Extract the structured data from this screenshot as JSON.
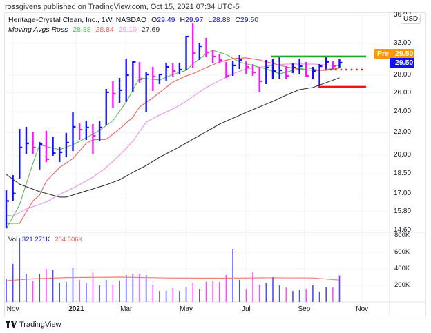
{
  "publisher_line": "rossgivens published on TradingView.com, Oct 15, 2021 07:34 UTC-5",
  "legend": {
    "symbol": "Heritage-Crystal Clean, Inc., 1W, NASDAQ",
    "o_label": "O",
    "o": "29.49",
    "h_label": "H",
    "h": "29.97",
    "l_label": "L",
    "l": "28.88",
    "c_label": "C",
    "c": "29.50",
    "ma_name": "Moving Avgs Ross",
    "ma1": "28.88",
    "ma2": "28.84",
    "ma3": "29.10",
    "ma4": "27.69"
  },
  "vol_legend": {
    "label": "Vol",
    "value": "321.271K",
    "ma": "264.506K"
  },
  "currency": "USD",
  "price_tags": {
    "pre_label": "Pre",
    "pre_value": "29.50",
    "last_value": "29.50"
  },
  "y_ticks": [
    "36.00",
    "32.00",
    "28.00",
    "26.00",
    "24.00",
    "22.00",
    "20.00",
    "18.50",
    "17.00",
    "15.80",
    "14.60"
  ],
  "y_tick_values": [
    36,
    32,
    28,
    26,
    24,
    22,
    20,
    18.5,
    17,
    15.8,
    14.6
  ],
  "vol_ticks": [
    "800K",
    "600K",
    "400K",
    "200K"
  ],
  "vol_tick_values": [
    800,
    600,
    400,
    200
  ],
  "x_ticks": [
    {
      "label": "Nov",
      "bar": 2,
      "bold": false
    },
    {
      "label": "2021",
      "bar": 11.5,
      "bold": true
    },
    {
      "label": "Mar",
      "bar": 19,
      "bold": false
    },
    {
      "label": "May",
      "bar": 28,
      "bold": false
    },
    {
      "label": "Jul",
      "bar": 37,
      "bold": false
    },
    {
      "label": "Sep",
      "bar": 45.7,
      "bold": false
    },
    {
      "label": "Nov",
      "bar": 54.4,
      "bold": false
    }
  ],
  "footer": {
    "brand": "TradingView"
  },
  "colors": {
    "up": "#1010ff",
    "down": "#ff10ff",
    "ma1": "#5cb85c",
    "ma2": "#f25c54",
    "ma3": "#f48cf4",
    "ma4": "#333333",
    "vol_ma": "#f25c54",
    "pre": "#ff9800",
    "last": "#1010ff",
    "resistance": "#22a822",
    "support": "#ff1010"
  },
  "chart_data": {
    "type": "ohlc-bar",
    "scale": "log",
    "bars": [
      [
        17.27,
        14.77,
        16.51,
        "up"
      ],
      [
        18.4,
        16.53,
        17.04,
        "up"
      ],
      [
        22.34,
        18.14,
        20.67,
        "up"
      ],
      [
        22.54,
        20.13,
        21.03,
        "up"
      ],
      [
        22.03,
        20.13,
        20.67,
        "down"
      ],
      [
        21.15,
        18.84,
        20.96,
        "up"
      ],
      [
        22.15,
        19.44,
        19.67,
        "down"
      ],
      [
        21.64,
        19.96,
        20.19,
        "up"
      ],
      [
        20.72,
        19.44,
        20.25,
        "up"
      ],
      [
        21.97,
        19.84,
        21.09,
        "up"
      ],
      [
        23.95,
        20.36,
        22.54,
        "up"
      ],
      [
        22.86,
        21.33,
        22.28,
        "down"
      ],
      [
        23.13,
        21.33,
        22.48,
        "up"
      ],
      [
        22.8,
        20.08,
        21.7,
        "down"
      ],
      [
        23.13,
        21.21,
        22.48,
        "up"
      ],
      [
        26.43,
        22.67,
        26.05,
        "up"
      ],
      [
        27.28,
        24.44,
        25.9,
        "down"
      ],
      [
        27.68,
        24.94,
        26.28,
        "up"
      ],
      [
        30.02,
        25.01,
        28.0,
        "up"
      ],
      [
        29.76,
        26.13,
        29.58,
        "up"
      ],
      [
        29.58,
        27.13,
        27.52,
        "down"
      ],
      [
        28.41,
        23.95,
        28.08,
        "up"
      ],
      [
        28.99,
        26.2,
        27.84,
        "down"
      ],
      [
        28.16,
        26.97,
        28.08,
        "up"
      ],
      [
        29.5,
        27.36,
        28.99,
        "up"
      ],
      [
        29.41,
        27.76,
        28.49,
        "down"
      ],
      [
        29.5,
        28.08,
        28.66,
        "up"
      ],
      [
        33.02,
        28.57,
        32.93,
        "up"
      ],
      [
        34.79,
        28.82,
        30.72,
        "down"
      ],
      [
        32.08,
        29.84,
        31.62,
        "up"
      ],
      [
        32.74,
        30.19,
        30.81,
        "down"
      ],
      [
        31.16,
        29.41,
        30.28,
        "down"
      ],
      [
        30.54,
        29.41,
        29.84,
        "down"
      ],
      [
        29.58,
        27.68,
        27.92,
        "down"
      ],
      [
        29.76,
        27.92,
        29.16,
        "up"
      ],
      [
        30.45,
        28.74,
        29.84,
        "up"
      ],
      [
        29.76,
        28.16,
        28.99,
        "down"
      ],
      [
        29.33,
        27.92,
        28.33,
        "down"
      ],
      [
        28.99,
        26.05,
        27.28,
        "down"
      ],
      [
        29.84,
        26.97,
        28.91,
        "up"
      ],
      [
        30.02,
        27.52,
        28.49,
        "up"
      ],
      [
        30.19,
        27.52,
        28.57,
        "up"
      ],
      [
        29.07,
        27.52,
        27.92,
        "down"
      ],
      [
        29.41,
        28.24,
        28.91,
        "up"
      ],
      [
        30.02,
        28.08,
        29.07,
        "up"
      ],
      [
        29.58,
        27.76,
        27.92,
        "down"
      ],
      [
        28.99,
        27.52,
        28.49,
        "up"
      ],
      [
        29.33,
        26.66,
        29.07,
        "up"
      ],
      [
        30.19,
        28.74,
        29.58,
        "up"
      ],
      [
        29.76,
        28.74,
        29.07,
        "down"
      ],
      [
        29.97,
        28.88,
        29.5,
        "up"
      ]
    ],
    "moving_averages": [
      {
        "name": "ma1",
        "points": [
          [
            1,
            14.69
          ],
          [
            3,
            16.25
          ],
          [
            5,
            19.33
          ],
          [
            6,
            20.9
          ],
          [
            9,
            20.48
          ],
          [
            11,
            20.9
          ],
          [
            13,
            21.52
          ],
          [
            15,
            22.21
          ],
          [
            17,
            23.13
          ],
          [
            19,
            25.01
          ],
          [
            21,
            27.68
          ],
          [
            24,
            27.44
          ],
          [
            26,
            28.08
          ],
          [
            28,
            28.57
          ],
          [
            29,
            29.33
          ],
          [
            31,
            30.63
          ],
          [
            32,
            31.07
          ],
          [
            34,
            30.54
          ],
          [
            36,
            29.58
          ],
          [
            38,
            29.16
          ],
          [
            40,
            28.74
          ],
          [
            42,
            28.16
          ],
          [
            44,
            28.57
          ],
          [
            46,
            28.91
          ],
          [
            48,
            28.57
          ],
          [
            51,
            28.88
          ]
        ]
      },
      {
        "name": "ma2",
        "points": [
          [
            1,
            15.03
          ],
          [
            3,
            15.03
          ],
          [
            5,
            16.51
          ],
          [
            6,
            16.92
          ],
          [
            7,
            17.93
          ],
          [
            9,
            19.0
          ],
          [
            11,
            19.73
          ],
          [
            13,
            21.03
          ],
          [
            14,
            21.34
          ],
          [
            16,
            21.39
          ],
          [
            18,
            22.34
          ],
          [
            20,
            23.47
          ],
          [
            21,
            24.51
          ],
          [
            23,
            25.45
          ],
          [
            26,
            27.2
          ],
          [
            28,
            27.92
          ],
          [
            29,
            28.16
          ],
          [
            31,
            28.91
          ],
          [
            33,
            29.58
          ],
          [
            35,
            30.02
          ],
          [
            37,
            30.11
          ],
          [
            39,
            29.84
          ],
          [
            41,
            29.41
          ],
          [
            43,
            28.99
          ],
          [
            45,
            28.74
          ],
          [
            47,
            28.57
          ],
          [
            49,
            28.57
          ],
          [
            51,
            28.84
          ]
        ]
      },
      {
        "name": "ma3",
        "points": [
          [
            1,
            15.56
          ],
          [
            2,
            15.5
          ],
          [
            4,
            15.97
          ],
          [
            7,
            16.44
          ],
          [
            9,
            16.97
          ],
          [
            11,
            17.42
          ],
          [
            14,
            18.24
          ],
          [
            16,
            19.0
          ],
          [
            18,
            20.01
          ],
          [
            20,
            21.21
          ],
          [
            22,
            23.0
          ],
          [
            24,
            23.67
          ],
          [
            26,
            24.3
          ],
          [
            28,
            25.08
          ],
          [
            29,
            25.6
          ],
          [
            31,
            26.58
          ],
          [
            33,
            27.36
          ],
          [
            35,
            28.16
          ],
          [
            37,
            28.74
          ],
          [
            41,
            29.16
          ],
          [
            43,
            29.33
          ],
          [
            47,
            29.33
          ],
          [
            51,
            29.1
          ]
        ]
      },
      {
        "name": "ma4",
        "points": [
          [
            1,
            18.46
          ],
          [
            3,
            17.72
          ],
          [
            6,
            17.17
          ],
          [
            9,
            16.78
          ],
          [
            10,
            16.78
          ],
          [
            13,
            17.22
          ],
          [
            16,
            17.67
          ],
          [
            18,
            18.04
          ],
          [
            20,
            18.62
          ],
          [
            22,
            19.16
          ],
          [
            24,
            19.84
          ],
          [
            27,
            20.72
          ],
          [
            33,
            22.8
          ],
          [
            37,
            23.95
          ],
          [
            39,
            24.51
          ],
          [
            41,
            25.08
          ],
          [
            43,
            25.75
          ],
          [
            45,
            26.35
          ],
          [
            47,
            26.58
          ],
          [
            49,
            27.13
          ],
          [
            51,
            27.69
          ]
        ]
      }
    ],
    "levels": [
      {
        "name": "resistance",
        "price": 30.28,
        "from_bar": 41,
        "style": "solid",
        "color": "resistance"
      },
      {
        "name": "support",
        "price": 26.66,
        "from_bar": 48,
        "style": "solid",
        "color": "support"
      },
      {
        "name": "entry",
        "price": 28.66,
        "from_bar": 49,
        "style": "dotted",
        "color": "support"
      }
    ],
    "volume_k": [
      283,
      458,
      775,
      342,
      250,
      342,
      400,
      383,
      233,
      242,
      408,
      267,
      233,
      358,
      200,
      267,
      208,
      258,
      325,
      342,
      342,
      325,
      208,
      133,
      133,
      167,
      133,
      183,
      233,
      158,
      242,
      250,
      242,
      325,
      642,
      267,
      158,
      358,
      208,
      225,
      300,
      200,
      175,
      133,
      150,
      158,
      200,
      125,
      183,
      175,
      321
    ],
    "volume_ma_k": [
      [
        1,
        258
      ],
      [
        5,
        280
      ],
      [
        10,
        295
      ],
      [
        18,
        300
      ],
      [
        25,
        290
      ],
      [
        33,
        288
      ],
      [
        40,
        292
      ],
      [
        47,
        290
      ],
      [
        51,
        265
      ]
    ]
  }
}
